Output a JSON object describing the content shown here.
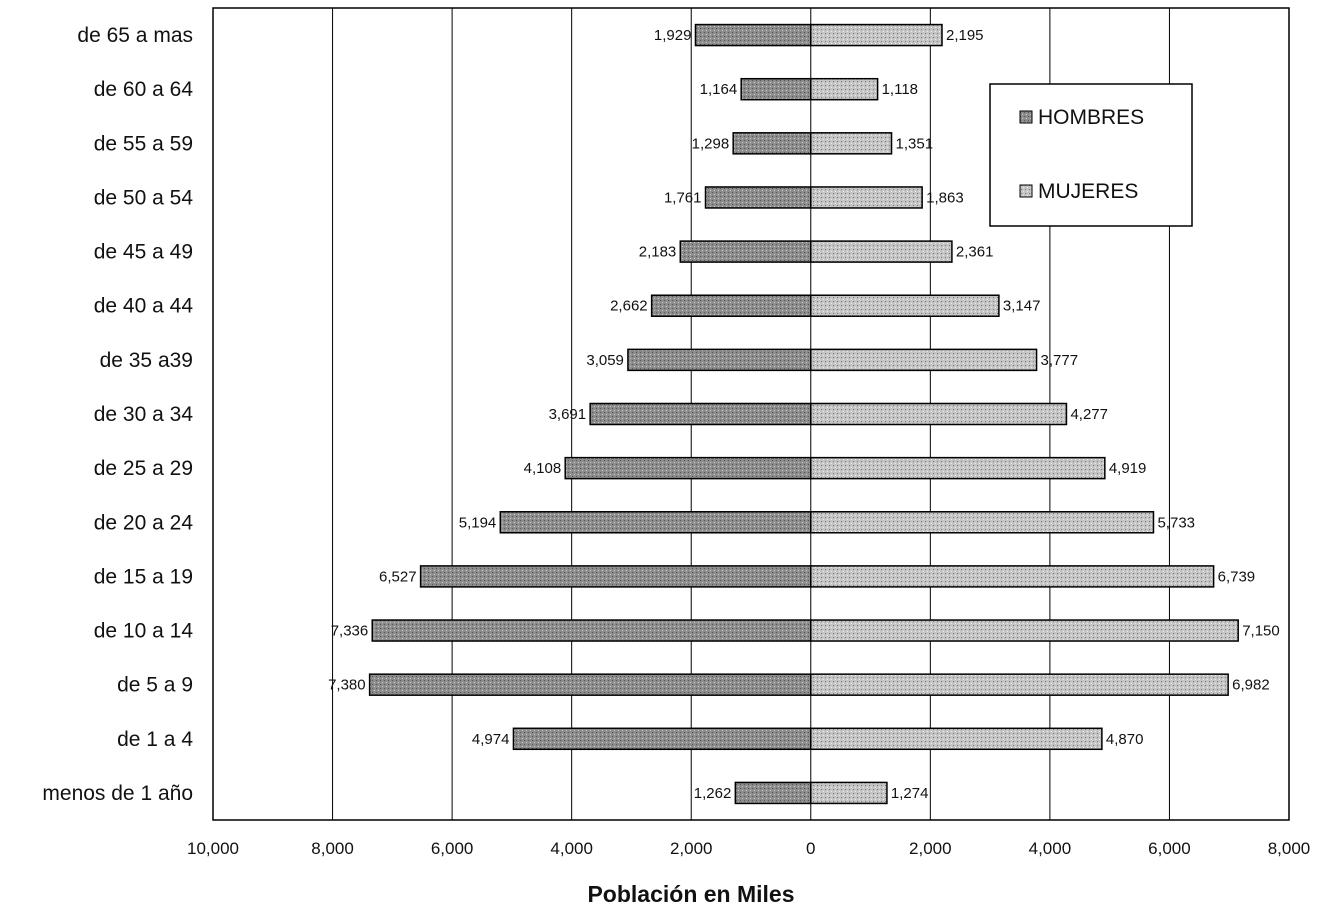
{
  "chart_data": {
    "type": "bar",
    "orientation": "horizontal-population-pyramid",
    "categories": [
      "de 65 a mas",
      "de 60 a 64",
      "de 55 a 59",
      "de 50 a 54",
      "de 45 a 49",
      "de 40 a 44",
      "de 35 a39",
      "de 30 a 34",
      "de 25 a 29",
      "de 20 a  24",
      "de 15 a 19",
      "de 10 a 14",
      "de 5 a 9",
      "de 1 a 4",
      "menos de 1 año"
    ],
    "series": [
      {
        "name": "HOMBRES",
        "values": [
          1929,
          1164,
          1298,
          1761,
          2183,
          2662,
          3059,
          3691,
          4108,
          5194,
          6527,
          7336,
          7380,
          4974,
          1262
        ],
        "labels": [
          "1,929",
          "1,164",
          "1,298",
          "1,761",
          "2,183",
          "2,662",
          "3,059",
          "3,691",
          "4,108",
          "5,194",
          "6,527",
          "7,336",
          "7,380",
          "4,974",
          "1,262"
        ],
        "side": "left",
        "color": "#8c8c8c"
      },
      {
        "name": "MUJERES",
        "values": [
          2195,
          1118,
          1351,
          1863,
          2361,
          3147,
          3777,
          4277,
          4919,
          5733,
          6739,
          7150,
          6982,
          4870,
          1274
        ],
        "labels": [
          "2,195",
          "1,118",
          "1,351",
          "1,863",
          "2,361",
          "3,147",
          "3,777",
          "4,277",
          "4,919",
          "5,733",
          "6,739",
          "7,150",
          "6,982",
          "4,870",
          "1,274"
        ],
        "side": "right",
        "color": "#c4c4c4"
      }
    ],
    "xlim": [
      -10000,
      8000
    ],
    "xticks": [
      -10000,
      -8000,
      -6000,
      -4000,
      -2000,
      0,
      2000,
      4000,
      6000,
      8000
    ],
    "xtick_labels": [
      "10,000",
      "8,000",
      "6,000",
      "4,000",
      "2,000",
      "0",
      "2,000",
      "4,000",
      "6,000",
      "8,000"
    ],
    "xlabel": "Población en Miles",
    "ylabel": "",
    "title": "",
    "grid": "vertical",
    "legend_position": "top-right"
  }
}
